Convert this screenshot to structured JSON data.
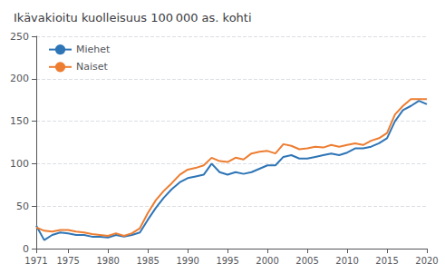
{
  "chart_data": {
    "type": "line",
    "title": "Ikävakioitu kuolleisuus 100 000 as. kohti",
    "x": [
      1971,
      1972,
      1973,
      1974,
      1975,
      1976,
      1977,
      1978,
      1979,
      1980,
      1981,
      1982,
      1983,
      1984,
      1985,
      1986,
      1987,
      1988,
      1989,
      1990,
      1991,
      1992,
      1993,
      1994,
      1995,
      1996,
      1997,
      1998,
      1999,
      2000,
      2001,
      2002,
      2003,
      2004,
      2005,
      2006,
      2007,
      2008,
      2009,
      2010,
      2011,
      2012,
      2013,
      2014,
      2015,
      2016,
      2017,
      2018,
      2019,
      2020
    ],
    "series": [
      {
        "name": "Miehet",
        "color": "#2e75b6",
        "values": [
          27,
          10,
          16,
          19,
          18,
          16,
          16,
          14,
          14,
          13,
          16,
          14,
          16,
          19,
          34,
          48,
          60,
          70,
          78,
          83,
          85,
          87,
          100,
          90,
          87,
          90,
          88,
          90,
          94,
          98,
          98,
          108,
          110,
          106,
          106,
          108,
          110,
          112,
          110,
          113,
          118,
          118,
          120,
          124,
          130,
          150,
          163,
          168,
          174,
          170
        ]
      },
      {
        "name": "Naiset",
        "color": "#ed7d31",
        "values": [
          25,
          21,
          20,
          22,
          22,
          20,
          19,
          17,
          16,
          15,
          18,
          15,
          18,
          24,
          42,
          57,
          68,
          77,
          87,
          93,
          95,
          98,
          107,
          103,
          102,
          107,
          105,
          112,
          114,
          115,
          112,
          123,
          121,
          117,
          118,
          120,
          119,
          122,
          120,
          122,
          124,
          122,
          127,
          130,
          136,
          158,
          168,
          176,
          176,
          176
        ]
      }
    ],
    "xlim": [
      1971,
      2020
    ],
    "ylim": [
      0,
      250
    ],
    "xticks": [
      1971,
      1975,
      1980,
      1985,
      1990,
      1995,
      2000,
      2005,
      2010,
      2015,
      2020
    ],
    "yticks": [
      0,
      50,
      100,
      150,
      200,
      250
    ],
    "grid": true,
    "legend": "upper left"
  }
}
